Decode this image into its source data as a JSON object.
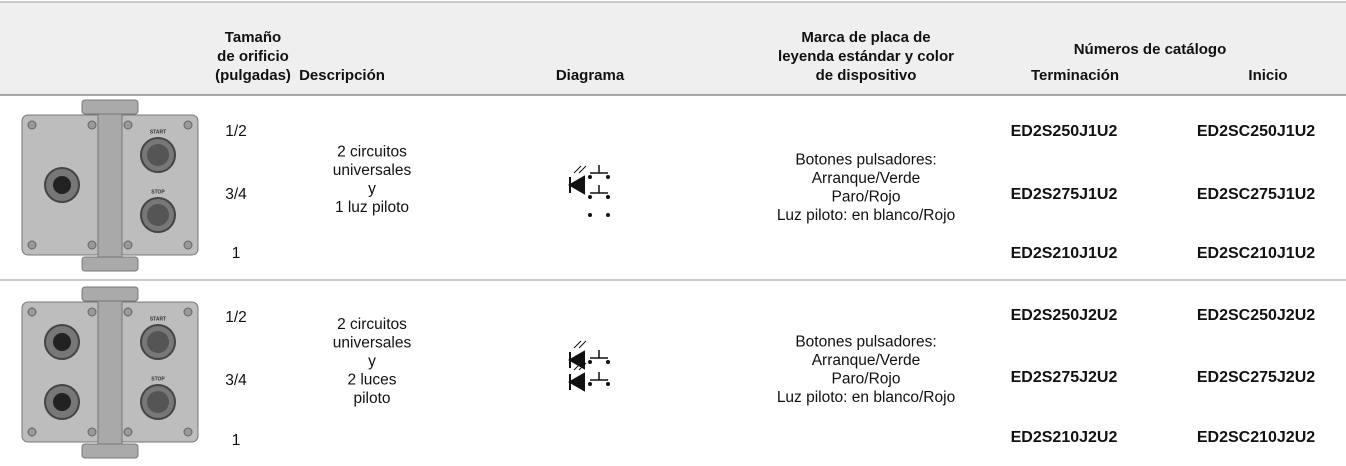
{
  "header": {
    "size": [
      "Tamaño",
      "de orificio",
      "(pulgadas)"
    ],
    "description": "Descripción",
    "diagram": "Diagrama",
    "legend": [
      "Marca de placa de",
      "leyenda estándar y color",
      "de dispositivo"
    ],
    "catalog": "Números de catálogo",
    "termination": "Terminación",
    "start": "Inicio"
  },
  "rows": [
    {
      "image_labels": [
        "START",
        "STOP"
      ],
      "sizes": [
        "1/2",
        "3/4",
        "1"
      ],
      "description": [
        "2 circuitos",
        "universales",
        "y",
        "1 luz piloto"
      ],
      "legend": [
        "Botones pulsadores:",
        "Arranque/Verde",
        "Paro/Rojo",
        "Luz piloto: en blanco/Rojo"
      ],
      "termination": [
        "ED2S250J1U2",
        "ED2S275J1U2",
        "ED2S210J1U2"
      ],
      "start": [
        "ED2SC250J1U2",
        "ED2SC275J1U2",
        "ED2SC210J1U2"
      ]
    },
    {
      "image_labels": [
        "START",
        "STOP"
      ],
      "sizes": [
        "1/2",
        "3/4",
        "1"
      ],
      "description": [
        "2 circuitos",
        "universales",
        "y",
        "2 luces",
        "piloto"
      ],
      "legend": [
        "Botones pulsadores:",
        "Arranque/Verde",
        "Paro/Rojo",
        "Luz piloto: en blanco/Rojo"
      ],
      "termination": [
        "ED2S250J2U2",
        "ED2S275J2U2",
        "ED2S210J2U2"
      ],
      "start": [
        "ED2SC250J2U2",
        "ED2SC275J2U2",
        "ED2SC210J2U2"
      ]
    }
  ]
}
